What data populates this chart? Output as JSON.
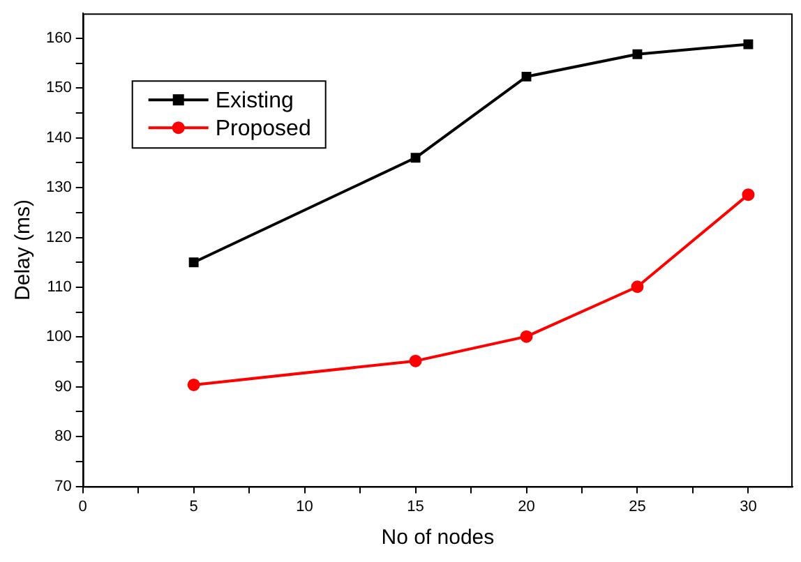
{
  "chart_data": {
    "type": "line",
    "xlabel": "No of nodes",
    "ylabel": "Delay (ms)",
    "x": [
      5,
      15,
      20,
      25,
      30
    ],
    "series": [
      {
        "name": "Existing",
        "color": "#000000",
        "marker": "square",
        "values": [
          115,
          136,
          152.3,
          156.8,
          158.8
        ]
      },
      {
        "name": "Proposed",
        "color": "#ff0000",
        "marker": "circle",
        "values": [
          90.4,
          95.2,
          100.1,
          110.1,
          128.6
        ]
      }
    ],
    "xlim": [
      0,
      32
    ],
    "xticks": [
      0,
      {
        "value": 2.5,
        "label": null
      },
      5,
      {
        "value": 7.5,
        "label": null
      },
      10,
      {
        "value": 12.5,
        "label": null
      },
      15,
      {
        "value": 17.5,
        "label": null
      },
      20,
      {
        "value": 22.5,
        "label": null
      },
      25,
      {
        "value": 27.5,
        "label": null
      },
      30
    ],
    "ylim": [
      70,
      165
    ],
    "yticks": [
      70,
      {
        "value": 75,
        "label": null
      },
      80,
      {
        "value": 85,
        "label": null
      },
      90,
      {
        "value": 95,
        "label": null
      },
      100,
      {
        "value": 105,
        "label": null
      },
      110,
      {
        "value": 115,
        "label": null
      },
      120,
      {
        "value": 125,
        "label": null
      },
      130,
      {
        "value": 135,
        "label": null
      },
      140,
      {
        "value": 145,
        "label": null
      },
      150,
      {
        "value": 155,
        "label": null
      },
      160
    ],
    "grid": false,
    "legend": "top left",
    "line_style": "solid"
  }
}
